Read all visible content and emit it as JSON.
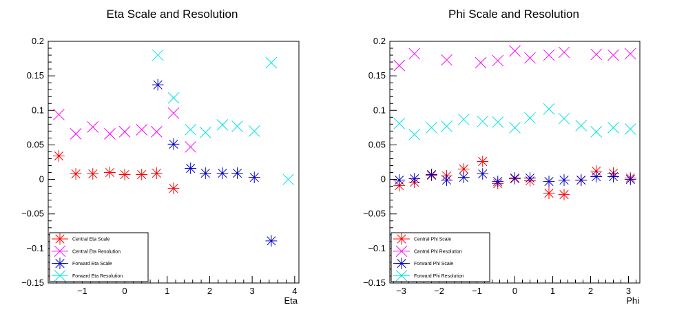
{
  "chart_data": [
    {
      "type": "scatter",
      "title": "Eta Scale and Resolution",
      "xlabel": "Eta",
      "ylabel": "",
      "xlim": [
        -1.8,
        4.1
      ],
      "ylim": [
        -0.15,
        0.2
      ],
      "xticks": [
        -1,
        0,
        1,
        2,
        3,
        4
      ],
      "yticks": [
        -0.15,
        -0.1,
        -0.05,
        0,
        0.05,
        0.1,
        0.15,
        0.2
      ],
      "ytick_labels": [
        "−0.15",
        "−0.1",
        "−0.05",
        "0",
        "0.05",
        "0.1",
        "0.15",
        "0.2"
      ],
      "xtick_labels": [
        "−1",
        "0",
        "1",
        "2",
        "3",
        "4"
      ],
      "grid": false,
      "legend_position": "bottom-left",
      "series": [
        {
          "name": "Central Eta Scale",
          "marker": "star",
          "color": "#ff0000",
          "points": [
            [
              -1.55,
              0.034
            ],
            [
              -1.15,
              0.008
            ],
            [
              -0.75,
              0.008
            ],
            [
              -0.35,
              0.01
            ],
            [
              0.0,
              0.007
            ],
            [
              0.4,
              0.007
            ],
            [
              0.75,
              0.009
            ],
            [
              1.15,
              -0.013
            ]
          ]
        },
        {
          "name": "Central Eta Resolution",
          "marker": "x",
          "color": "#ff00ff",
          "points": [
            [
              -1.55,
              0.094
            ],
            [
              -1.15,
              0.066
            ],
            [
              -0.75,
              0.076
            ],
            [
              -0.35,
              0.066
            ],
            [
              0.0,
              0.069
            ],
            [
              0.4,
              0.072
            ],
            [
              0.75,
              0.069
            ],
            [
              1.15,
              0.096
            ],
            [
              1.55,
              0.047
            ]
          ]
        },
        {
          "name": "Forward Eta Scale",
          "marker": "star",
          "color": "#0000cc",
          "points": [
            [
              0.78,
              0.137
            ],
            [
              1.15,
              0.051
            ],
            [
              1.55,
              0.016
            ],
            [
              1.9,
              0.009
            ],
            [
              2.3,
              0.009
            ],
            [
              2.65,
              0.009
            ],
            [
              3.05,
              0.003
            ],
            [
              3.45,
              -0.089
            ]
          ]
        },
        {
          "name": "Forward Eta Resolution",
          "marker": "x",
          "color": "#00e5e5",
          "points": [
            [
              0.78,
              0.18
            ],
            [
              1.15,
              0.118
            ],
            [
              1.55,
              0.072
            ],
            [
              1.9,
              0.068
            ],
            [
              2.3,
              0.079
            ],
            [
              2.65,
              0.077
            ],
            [
              3.05,
              0.07
            ],
            [
              3.45,
              0.169
            ],
            [
              3.85,
              0.0
            ]
          ]
        }
      ]
    },
    {
      "type": "scatter",
      "title": "Phi Scale and Resolution",
      "xlabel": "Phi",
      "ylabel": "",
      "xlim": [
        -3.3,
        3.3
      ],
      "ylim": [
        -0.15,
        0.2
      ],
      "xticks": [
        -3,
        -2,
        -1,
        0,
        1,
        2,
        3
      ],
      "yticks": [
        -0.15,
        -0.1,
        -0.05,
        0,
        0.05,
        0.1,
        0.15,
        0.2
      ],
      "ytick_labels": [
        "−0.15",
        "−0.1",
        "−0.05",
        "0",
        "0.05",
        "0.1",
        "0.15",
        "0.2"
      ],
      "xtick_labels": [
        "−3",
        "−2",
        "−1",
        "0",
        "1",
        "2",
        "3"
      ],
      "grid": false,
      "legend_position": "bottom-left",
      "series": [
        {
          "name": "Central Phi Scale",
          "marker": "star",
          "color": "#ff0000",
          "points": [
            [
              -3.05,
              -0.009
            ],
            [
              -2.65,
              -0.004
            ],
            [
              -2.2,
              0.006
            ],
            [
              -1.8,
              0.005
            ],
            [
              -1.35,
              0.015
            ],
            [
              -0.85,
              0.026
            ],
            [
              -0.45,
              -0.006
            ],
            [
              0.0,
              0.001
            ],
            [
              0.4,
              -0.002
            ],
            [
              0.9,
              -0.02
            ],
            [
              1.3,
              -0.022
            ],
            [
              1.75,
              -0.001
            ],
            [
              2.15,
              0.012
            ],
            [
              2.6,
              0.009
            ],
            [
              3.05,
              0.002
            ]
          ]
        },
        {
          "name": "Central Phi Resolution",
          "marker": "x",
          "color": "#ff00ff",
          "points": [
            [
              -3.05,
              0.165
            ],
            [
              -2.65,
              0.182
            ],
            [
              -1.8,
              0.173
            ],
            [
              -0.9,
              0.169
            ],
            [
              -0.45,
              0.172
            ],
            [
              0.0,
              0.186
            ],
            [
              0.4,
              0.176
            ],
            [
              0.9,
              0.18
            ],
            [
              1.3,
              0.184
            ],
            [
              2.15,
              0.181
            ],
            [
              2.6,
              0.18
            ],
            [
              3.05,
              0.182
            ]
          ]
        },
        {
          "name": "Forward Phi Scale",
          "marker": "star",
          "color": "#0000cc",
          "points": [
            [
              -3.05,
              -0.001
            ],
            [
              -2.65,
              0.001
            ],
            [
              -2.2,
              0.007
            ],
            [
              -1.8,
              -0.001
            ],
            [
              -1.35,
              0.003
            ],
            [
              -0.85,
              0.008
            ],
            [
              -0.45,
              -0.003
            ],
            [
              0.0,
              0.002
            ],
            [
              0.4,
              0.002
            ],
            [
              0.9,
              -0.003
            ],
            [
              1.3,
              -0.001
            ],
            [
              1.75,
              -0.001
            ],
            [
              2.15,
              0.004
            ],
            [
              2.6,
              0.004
            ],
            [
              3.05,
              0.0
            ]
          ]
        },
        {
          "name": "Forward Phi Resolution",
          "marker": "x",
          "color": "#00e5e5",
          "points": [
            [
              -3.05,
              0.081
            ],
            [
              -2.65,
              0.065
            ],
            [
              -2.2,
              0.075
            ],
            [
              -1.8,
              0.077
            ],
            [
              -1.35,
              0.087
            ],
            [
              -0.85,
              0.084
            ],
            [
              -0.45,
              0.083
            ],
            [
              0.0,
              0.075
            ],
            [
              0.4,
              0.089
            ],
            [
              0.9,
              0.102
            ],
            [
              1.3,
              0.088
            ],
            [
              1.75,
              0.078
            ],
            [
              2.15,
              0.069
            ],
            [
              2.6,
              0.075
            ],
            [
              3.05,
              0.073
            ]
          ]
        }
      ]
    }
  ]
}
